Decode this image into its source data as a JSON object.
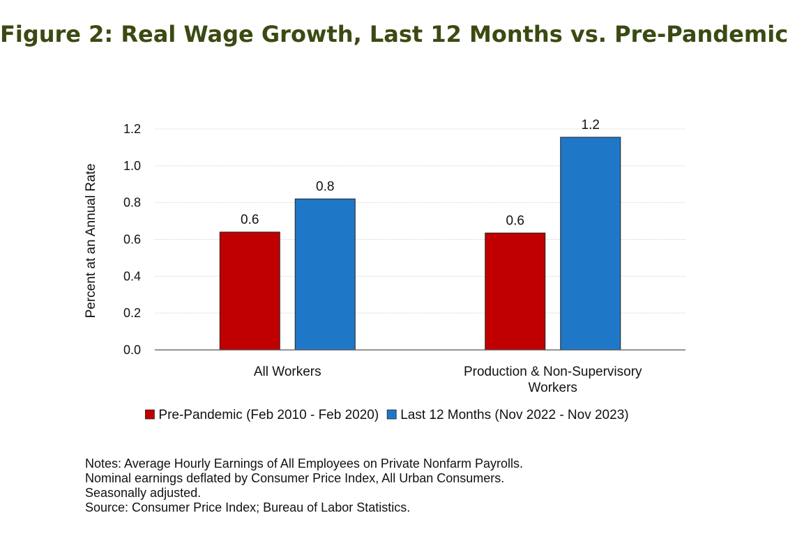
{
  "figure_title": "Figure 2: Real Wage Growth, Last 12 Months vs. Pre-Pandemic",
  "chart_data": {
    "type": "bar",
    "title": "",
    "xlabel": "",
    "ylabel": "Percent at an Annual Rate",
    "ylim": [
      0,
      1.2
    ],
    "yticks": [
      "0.0",
      "0.2",
      "0.4",
      "0.6",
      "0.8",
      "1.0",
      "1.2"
    ],
    "grid": true,
    "legend_position": "bottom",
    "categories": [
      [
        "All Workers"
      ],
      [
        "Production & Non-Supervisory",
        "Workers"
      ]
    ],
    "series": [
      {
        "name": "Pre-Pandemic (Feb 2010 - Feb 2020)",
        "color": "#c00000",
        "values": [
          0.64,
          0.635
        ],
        "labels": [
          "0.6",
          "0.6"
        ]
      },
      {
        "name": "Last 12 Months (Nov 2022 - Nov 2023)",
        "color": "#1f77c8",
        "values": [
          0.82,
          1.155
        ],
        "labels": [
          "0.8",
          "1.2"
        ]
      }
    ]
  },
  "notes": [
    "Notes: Average Hourly Earnings of All Employees on Private Nonfarm Payrolls.",
    "Nominal earnings deflated by Consumer Price Index, All Urban Consumers.",
    "Seasonally adjusted.",
    "Source: Consumer Price Index; Bureau of Labor Statistics."
  ]
}
